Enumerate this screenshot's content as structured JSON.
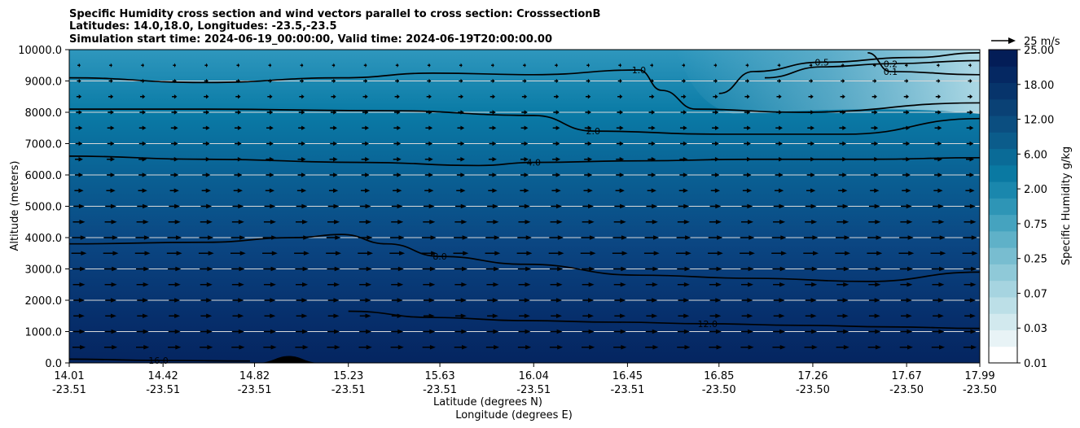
{
  "chart_data": {
    "type": "contourf",
    "title_lines": [
      "Specific Humidity cross section and wind vectors parallel to cross section: CrosssectionB",
      "Latitudes: 14.0,18.0, Longitudes: -23.5,-23.5",
      "Simulation start time: 2024-06-19_00:00:00, Valid time: 2024-06-19T20:00:00.00"
    ],
    "ylabel": "Altitude (meters)",
    "xlabel_lines": [
      "Latitude (degrees N)",
      "Longitude (degrees E)"
    ],
    "ylim": [
      0,
      10000
    ],
    "yticks": [
      "0.0",
      "1000.0",
      "2000.0",
      "3000.0",
      "4000.0",
      "5000.0",
      "6000.0",
      "7000.0",
      "8000.0",
      "9000.0",
      "10000.0"
    ],
    "xlim": [
      14.01,
      17.99
    ],
    "xticks": [
      {
        "lat": "14.01",
        "lon": "-23.51",
        "value": 14.01
      },
      {
        "lat": "14.42",
        "lon": "-23.51",
        "value": 14.42
      },
      {
        "lat": "14.82",
        "lon": "-23.51",
        "value": 14.82
      },
      {
        "lat": "15.23",
        "lon": "-23.51",
        "value": 15.23
      },
      {
        "lat": "15.63",
        "lon": "-23.51",
        "value": 15.63
      },
      {
        "lat": "16.04",
        "lon": "-23.51",
        "value": 16.04
      },
      {
        "lat": "16.45",
        "lon": "-23.51",
        "value": 16.45
      },
      {
        "lat": "16.85",
        "lon": "-23.50",
        "value": 16.85
      },
      {
        "lat": "17.26",
        "lon": "-23.50",
        "value": 17.26
      },
      {
        "lat": "17.67",
        "lon": "-23.50",
        "value": 17.67
      },
      {
        "lat": "17.99",
        "lon": "-23.50",
        "value": 17.99
      }
    ],
    "colorbar": {
      "label": "Specific Humidity g/kg",
      "ticks": [
        "0.01",
        "0.03",
        "0.07",
        "0.25",
        "0.75",
        "2.00",
        "6.00",
        "12.00",
        "18.00",
        "25.00"
      ]
    },
    "quiver_key": "25 m/s",
    "contours": [
      {
        "level": "16.0",
        "points": [
          [
            14.01,
            120
          ],
          [
            14.4,
            80
          ],
          [
            14.8,
            60
          ]
        ]
      },
      {
        "level": "12.0",
        "points": [
          [
            15.23,
            1650
          ],
          [
            15.6,
            1450
          ],
          [
            16.0,
            1350
          ],
          [
            16.4,
            1300
          ],
          [
            16.8,
            1250
          ],
          [
            17.2,
            1200
          ],
          [
            17.6,
            1150
          ],
          [
            17.99,
            1100
          ]
        ]
      },
      {
        "level": "8.0",
        "points": [
          [
            14.01,
            3800
          ],
          [
            14.6,
            3850
          ],
          [
            15.0,
            4000
          ],
          [
            15.2,
            4100
          ],
          [
            15.4,
            3800
          ],
          [
            15.63,
            3400
          ],
          [
            16.0,
            3150
          ],
          [
            16.5,
            2800
          ],
          [
            17.0,
            2700
          ],
          [
            17.5,
            2600
          ],
          [
            17.99,
            2900
          ]
        ]
      },
      {
        "level": "4.0",
        "points": [
          [
            14.01,
            6600
          ],
          [
            14.6,
            6500
          ],
          [
            15.3,
            6400
          ],
          [
            15.8,
            6300
          ],
          [
            16.04,
            6400
          ],
          [
            16.5,
            6450
          ],
          [
            17.0,
            6500
          ],
          [
            17.5,
            6500
          ],
          [
            17.99,
            6550
          ]
        ]
      },
      {
        "level": "2.0",
        "points": [
          [
            14.01,
            8100
          ],
          [
            14.6,
            8100
          ],
          [
            15.4,
            8050
          ],
          [
            16.04,
            7900
          ],
          [
            16.3,
            7400
          ],
          [
            16.85,
            7300
          ],
          [
            17.4,
            7300
          ],
          [
            17.99,
            7800
          ]
        ]
      },
      {
        "level": "1.0",
        "points": [
          [
            14.01,
            9100
          ],
          [
            14.6,
            8950
          ],
          [
            15.2,
            9100
          ],
          [
            15.6,
            9250
          ],
          [
            16.04,
            9200
          ],
          [
            16.5,
            9350
          ],
          [
            16.6,
            8700
          ],
          [
            16.75,
            8100
          ],
          [
            17.2,
            8000
          ],
          [
            17.99,
            8300
          ]
        ]
      },
      {
        "level": "0.5",
        "points": [
          [
            16.85,
            8600
          ],
          [
            17.0,
            9300
          ],
          [
            17.3,
            9600
          ],
          [
            17.7,
            9750
          ],
          [
            17.99,
            9900
          ]
        ]
      },
      {
        "level": "0.2",
        "points": [
          [
            17.05,
            9100
          ],
          [
            17.3,
            9450
          ],
          [
            17.6,
            9550
          ],
          [
            17.99,
            9650
          ]
        ]
      },
      {
        "level": "0.1",
        "points": [
          [
            17.5,
            9900
          ],
          [
            17.6,
            9300
          ],
          [
            17.99,
            9200
          ]
        ]
      }
    ],
    "wind": {
      "levels_m": [
        500,
        1000,
        1500,
        2000,
        2500,
        3000,
        3500,
        4000,
        4500,
        5000,
        5500,
        6000,
        6500,
        7000,
        7500,
        8000,
        8500,
        9000,
        9500
      ],
      "speed_ms": [
        13,
        12,
        11,
        11,
        12,
        13,
        15,
        14,
        12,
        11,
        9,
        8,
        8,
        7,
        7,
        6,
        5,
        4,
        3
      ]
    },
    "terrain": {
      "center": 14.97,
      "width": 0.28,
      "height_m": 220
    }
  }
}
